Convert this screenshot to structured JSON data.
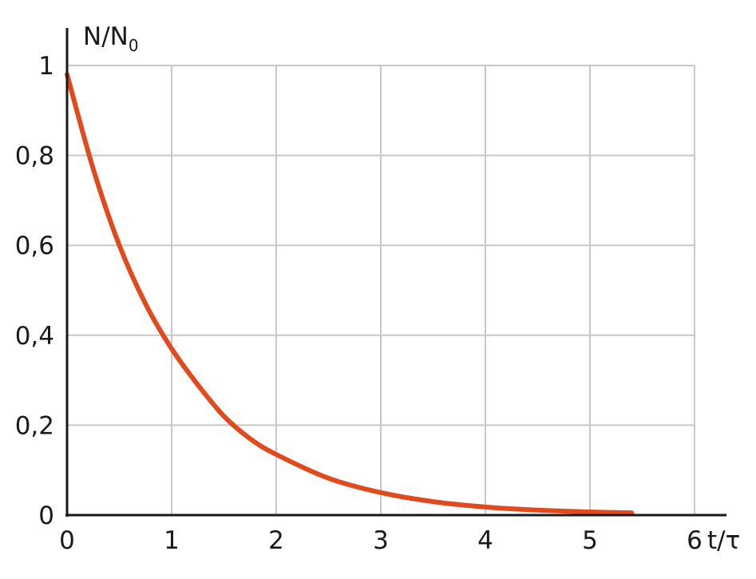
{
  "chart_data": {
    "type": "line",
    "title": "",
    "xlabel": "t/τ",
    "ylabel_main": "N/N",
    "ylabel_sub": "0",
    "x_ticks": [
      "0",
      "1",
      "2",
      "3",
      "4",
      "5",
      "6"
    ],
    "y_ticks": [
      "0",
      "0,2",
      "0,4",
      "0,6",
      "0,8",
      "1"
    ],
    "xlim": [
      0,
      6
    ],
    "ylim": [
      0,
      1
    ],
    "grid": true,
    "series": [
      {
        "color": "#e04a1c",
        "x": [
          0,
          0.25,
          0.5,
          0.75,
          1,
          1.25,
          1.5,
          1.75,
          2,
          2.5,
          3,
          3.5,
          4,
          4.5,
          5,
          5.4
        ],
        "y": [
          0.98,
          0.77,
          0.6,
          0.47,
          0.37,
          0.29,
          0.22,
          0.17,
          0.135,
          0.082,
          0.05,
          0.03,
          0.018,
          0.011,
          0.007,
          0.005
        ]
      }
    ]
  }
}
